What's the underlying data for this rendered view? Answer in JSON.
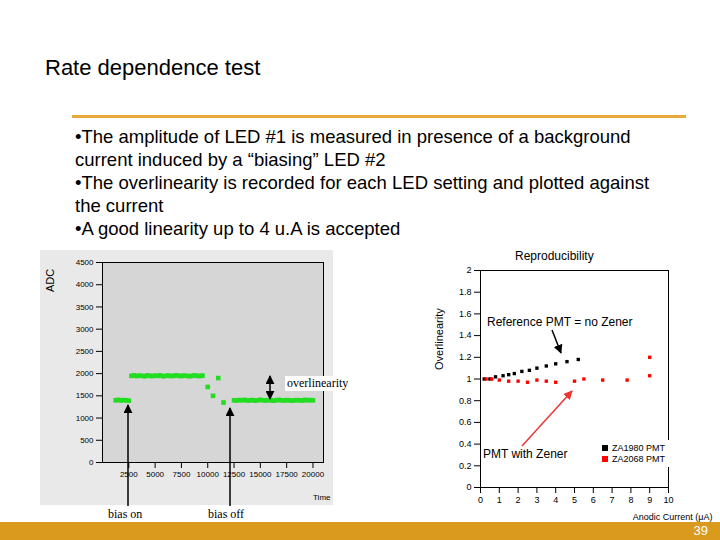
{
  "slide": {
    "title": "Rate dependence test",
    "bullets": [
      "•The amplitude of LED #1 is measured in presence of a background current induced by a “biasing” LED #2",
      "•The overlinearity is recorded for each LED setting and plotted against the current",
      "•A good linearity up to 4 u.A is accepted"
    ],
    "page": 39
  },
  "chart_data": [
    {
      "type": "scatter",
      "x_label": "Time",
      "y_label": "ADC",
      "color": "#22dd22",
      "marker": "square",
      "x": [
        1250,
        1500,
        1750,
        2000,
        2250,
        2500,
        2750,
        3000,
        3250,
        3500,
        3750,
        4000,
        4250,
        4500,
        4750,
        5000,
        5250,
        5500,
        5750,
        6000,
        6250,
        6500,
        6750,
        7000,
        7250,
        7500,
        7750,
        8000,
        8250,
        8500,
        8750,
        9000,
        9250,
        9500,
        10000,
        10500,
        11000,
        11500,
        12500,
        12750,
        13000,
        13250,
        13500,
        13750,
        14000,
        14250,
        14500,
        14750,
        15000,
        15250,
        15500,
        15750,
        16000,
        16250,
        16500,
        16750,
        17000,
        17250,
        17500,
        17750,
        18000,
        18250,
        18500,
        18750,
        19000,
        19250,
        19500,
        19750,
        20000
      ],
      "values": [
        1400,
        1410,
        1395,
        1405,
        1400,
        1390,
        1950,
        1960,
        1945,
        1955,
        1950,
        1940,
        1960,
        1950,
        1945,
        1955,
        1950,
        1960,
        1940,
        1950,
        1955,
        1945,
        1950,
        1960,
        1950,
        1945,
        1955,
        1950,
        1940,
        1950,
        1960,
        1950,
        1945,
        1955,
        1700,
        1500,
        1900,
        1350,
        1400,
        1395,
        1405,
        1400,
        1410,
        1395,
        1400,
        1405,
        1390,
        1400,
        1410,
        1400,
        1395,
        1405,
        1400,
        1390,
        1400,
        1410,
        1400,
        1395,
        1405,
        1400,
        1390,
        1400,
        1405,
        1400,
        1395,
        1410,
        1400,
        1405,
        1400
      ],
      "xlim": [
        0,
        21000
      ],
      "ylim": [
        0,
        4500
      ],
      "xticks": [
        2500,
        5000,
        7500,
        10000,
        12500,
        15000,
        17500,
        20000
      ],
      "yticks": [
        0,
        500,
        1000,
        1500,
        2000,
        2500,
        3000,
        3500,
        4000,
        4500
      ],
      "annotations": [
        {
          "text": "overlinearity"
        },
        {
          "text": "bias on"
        },
        {
          "text": "bias off"
        }
      ]
    },
    {
      "type": "scatter",
      "title": "Reproducibility",
      "x_label": "Anodic Current (μA)",
      "y_label": "Overlinearity",
      "legend": "bottom-right",
      "marker": "square",
      "series": [
        {
          "name": "ZA1980 PMT",
          "color": "#000000",
          "x": [
            0.2,
            0.5,
            0.8,
            1.2,
            1.5,
            1.8,
            2.2,
            2.6,
            3.0,
            3.5,
            4.0,
            4.6,
            5.2
          ],
          "values": [
            1.0,
            1.0,
            1.02,
            1.03,
            1.04,
            1.05,
            1.07,
            1.08,
            1.1,
            1.12,
            1.14,
            1.16,
            1.18
          ]
        },
        {
          "name": "ZA2068 PMT",
          "color": "#ff0000",
          "x": [
            0.3,
            0.6,
            1.0,
            1.5,
            2.0,
            2.5,
            3.0,
            3.5,
            4.0,
            5.0,
            5.5,
            6.5,
            7.8,
            9.0,
            9.0
          ],
          "values": [
            1.0,
            1.0,
            0.99,
            0.98,
            0.98,
            0.97,
            0.99,
            0.98,
            0.97,
            0.98,
            1.0,
            0.99,
            0.99,
            1.03,
            1.2
          ]
        }
      ],
      "xlim": [
        0,
        10
      ],
      "ylim": [
        0,
        2
      ],
      "xticks": [
        0,
        1,
        2,
        3,
        4,
        5,
        6,
        7,
        8,
        9,
        10
      ],
      "yticks": [
        0,
        0.2,
        0.4,
        0.6,
        0.8,
        1,
        1.2,
        1.4,
        1.6,
        1.8,
        2
      ],
      "annotations": [
        {
          "text": "Reference PMT = no Zener"
        },
        {
          "text": "PMT with Zener"
        }
      ]
    }
  ]
}
